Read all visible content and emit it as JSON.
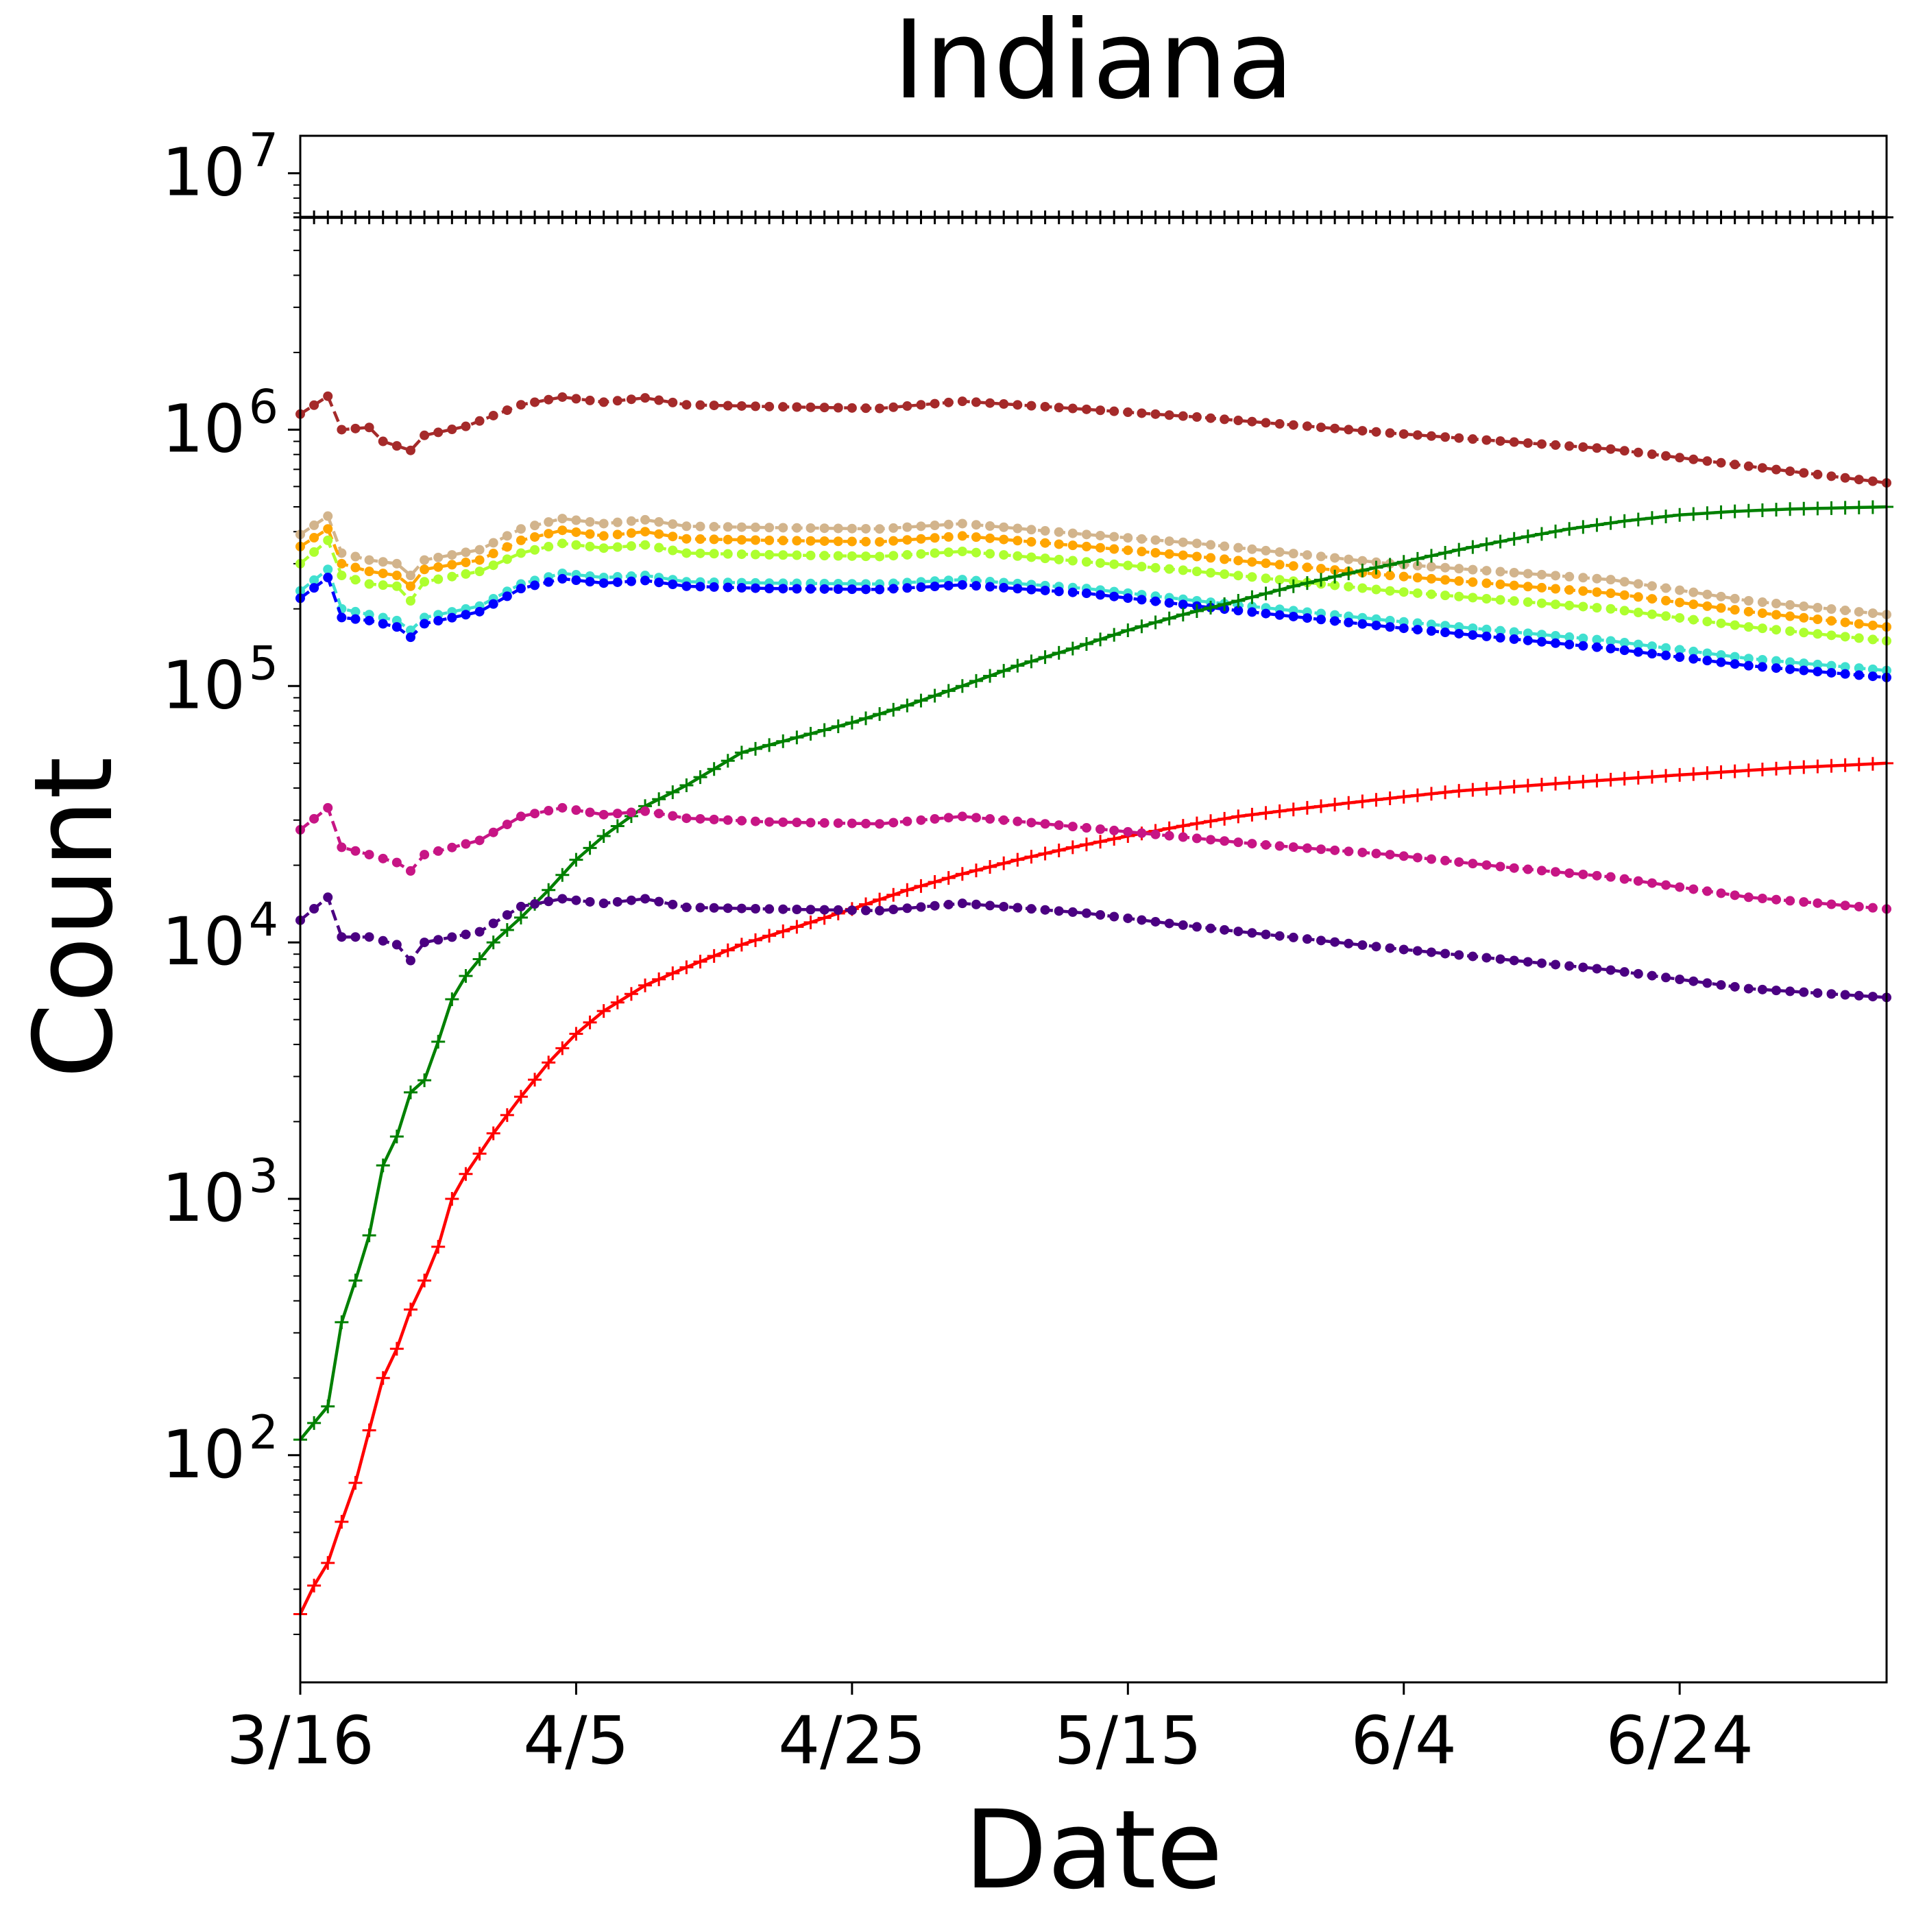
{
  "chart_data": {
    "type": "line",
    "title": "Indiana",
    "xlabel": "Date",
    "ylabel": "Count",
    "x_axis": {
      "start": "3/16",
      "end_day_offset_label_span": "3/16 to 7/9",
      "tick_labels": [
        "3/16",
        "4/5",
        "4/25",
        "5/15",
        "6/4",
        "6/24"
      ],
      "n_days": 116
    },
    "y_axis": {
      "scale": "log",
      "ylim": [
        13,
        14000000
      ],
      "tick_exponents": [
        2,
        3,
        4,
        5,
        6,
        7
      ],
      "tick_base": "10"
    },
    "grid": false,
    "legend": "none",
    "series": [
      {
        "color": "#000000",
        "style": "solid",
        "marker": "plus",
        "keys": [
          [
            0,
            6730000
          ],
          [
            115,
            6730000
          ]
        ]
      },
      {
        "color": "#a52a2a",
        "style": "dashed",
        "marker": "dot",
        "keys": [
          [
            0,
            1150000
          ],
          [
            2,
            1350000
          ],
          [
            3,
            1000000
          ],
          [
            5,
            1020000
          ],
          [
            6,
            900000
          ],
          [
            8,
            830000
          ],
          [
            9,
            950000
          ],
          [
            12,
            1030000
          ],
          [
            16,
            1250000
          ],
          [
            19,
            1340000
          ],
          [
            22,
            1280000
          ],
          [
            25,
            1330000
          ],
          [
            28,
            1250000
          ],
          [
            34,
            1230000
          ],
          [
            42,
            1210000
          ],
          [
            48,
            1290000
          ],
          [
            57,
            1200000
          ],
          [
            65,
            1120000
          ],
          [
            79,
            970000
          ],
          [
            95,
            840000
          ],
          [
            105,
            720000
          ],
          [
            115,
            620000
          ]
        ]
      },
      {
        "color": "#d2b48c",
        "style": "dashed",
        "marker": "dot",
        "keys": [
          [
            0,
            390000
          ],
          [
            2,
            460000
          ],
          [
            3,
            330000
          ],
          [
            5,
            310000
          ],
          [
            7,
            300000
          ],
          [
            8,
            270000
          ],
          [
            9,
            310000
          ],
          [
            13,
            340000
          ],
          [
            16,
            410000
          ],
          [
            19,
            450000
          ],
          [
            22,
            430000
          ],
          [
            25,
            445000
          ],
          [
            28,
            420000
          ],
          [
            34,
            415000
          ],
          [
            42,
            410000
          ],
          [
            48,
            430000
          ],
          [
            57,
            390000
          ],
          [
            65,
            360000
          ],
          [
            79,
            300000
          ],
          [
            95,
            260000
          ],
          [
            105,
            215000
          ],
          [
            115,
            190000
          ]
        ]
      },
      {
        "color": "#ffa500",
        "style": "dashed",
        "marker": "dot",
        "keys": [
          [
            0,
            350000
          ],
          [
            2,
            410000
          ],
          [
            3,
            300000
          ],
          [
            5,
            280000
          ],
          [
            7,
            270000
          ],
          [
            8,
            245000
          ],
          [
            9,
            285000
          ],
          [
            13,
            310000
          ],
          [
            16,
            370000
          ],
          [
            19,
            405000
          ],
          [
            22,
            385000
          ],
          [
            25,
            400000
          ],
          [
            28,
            375000
          ],
          [
            34,
            370000
          ],
          [
            42,
            365000
          ],
          [
            48,
            385000
          ],
          [
            57,
            350000
          ],
          [
            65,
            320000
          ],
          [
            79,
            270000
          ],
          [
            95,
            230000
          ],
          [
            105,
            195000
          ],
          [
            115,
            170000
          ]
        ]
      },
      {
        "color": "#adff2f",
        "style": "dashed",
        "marker": "dot",
        "keys": [
          [
            0,
            300000
          ],
          [
            2,
            370000
          ],
          [
            3,
            270000
          ],
          [
            5,
            250000
          ],
          [
            7,
            245000
          ],
          [
            8,
            215000
          ],
          [
            9,
            255000
          ],
          [
            13,
            280000
          ],
          [
            16,
            330000
          ],
          [
            19,
            360000
          ],
          [
            22,
            345000
          ],
          [
            25,
            355000
          ],
          [
            28,
            330000
          ],
          [
            34,
            325000
          ],
          [
            42,
            320000
          ],
          [
            48,
            335000
          ],
          [
            57,
            305000
          ],
          [
            65,
            280000
          ],
          [
            79,
            235000
          ],
          [
            95,
            200000
          ],
          [
            105,
            170000
          ],
          [
            115,
            150000
          ]
        ]
      },
      {
        "color": "#40e0d0",
        "style": "dashed",
        "marker": "dot",
        "keys": [
          [
            0,
            235000
          ],
          [
            2,
            285000
          ],
          [
            3,
            200000
          ],
          [
            5,
            190000
          ],
          [
            7,
            180000
          ],
          [
            8,
            165000
          ],
          [
            9,
            185000
          ],
          [
            13,
            205000
          ],
          [
            16,
            250000
          ],
          [
            19,
            275000
          ],
          [
            22,
            265000
          ],
          [
            25,
            270000
          ],
          [
            28,
            255000
          ],
          [
            34,
            252000
          ],
          [
            42,
            250000
          ],
          [
            48,
            260000
          ],
          [
            57,
            240000
          ],
          [
            65,
            215000
          ],
          [
            79,
            180000
          ],
          [
            95,
            150000
          ],
          [
            105,
            128000
          ],
          [
            115,
            115000
          ]
        ]
      },
      {
        "color": "#0000ff",
        "style": "dashed",
        "marker": "dot",
        "keys": [
          [
            0,
            220000
          ],
          [
            2,
            265000
          ],
          [
            3,
            185000
          ],
          [
            5,
            180000
          ],
          [
            7,
            170000
          ],
          [
            8,
            155000
          ],
          [
            9,
            175000
          ],
          [
            13,
            195000
          ],
          [
            16,
            240000
          ],
          [
            19,
            262000
          ],
          [
            22,
            252000
          ],
          [
            25,
            258000
          ],
          [
            28,
            245000
          ],
          [
            34,
            240000
          ],
          [
            42,
            238000
          ],
          [
            48,
            248000
          ],
          [
            57,
            230000
          ],
          [
            65,
            205000
          ],
          [
            79,
            170000
          ],
          [
            95,
            140000
          ],
          [
            105,
            120000
          ],
          [
            115,
            108000
          ]
        ]
      },
      {
        "color": "#008000",
        "style": "solid",
        "marker": "plus",
        "keys": [
          [
            0,
            115
          ],
          [
            2,
            155
          ],
          [
            3,
            330
          ],
          [
            4,
            480
          ],
          [
            5,
            720
          ],
          [
            6,
            1350
          ],
          [
            7,
            1750
          ],
          [
            8,
            2600
          ],
          [
            9,
            2900
          ],
          [
            10,
            4100
          ],
          [
            11,
            6000
          ],
          [
            12,
            7400
          ],
          [
            14,
            10000
          ],
          [
            16,
            12500
          ],
          [
            18,
            16000
          ],
          [
            20,
            21000
          ],
          [
            22,
            26000
          ],
          [
            25,
            34000
          ],
          [
            28,
            41000
          ],
          [
            32,
            55000
          ],
          [
            36,
            63000
          ],
          [
            40,
            72000
          ],
          [
            44,
            84000
          ],
          [
            48,
            100000
          ],
          [
            52,
            120000
          ],
          [
            56,
            140000
          ],
          [
            60,
            165000
          ],
          [
            64,
            190000
          ],
          [
            68,
            215000
          ],
          [
            72,
            245000
          ],
          [
            76,
            275000
          ],
          [
            80,
            305000
          ],
          [
            84,
            340000
          ],
          [
            88,
            375000
          ],
          [
            92,
            410000
          ],
          [
            96,
            440000
          ],
          [
            100,
            465000
          ],
          [
            104,
            480000
          ],
          [
            108,
            490000
          ],
          [
            115,
            500000
          ]
        ]
      },
      {
        "color": "#ff0000",
        "style": "solid",
        "marker": "plus",
        "keys": [
          [
            0,
            24
          ],
          [
            1,
            31
          ],
          [
            2,
            38
          ],
          [
            3,
            55
          ],
          [
            4,
            78
          ],
          [
            5,
            125
          ],
          [
            6,
            200
          ],
          [
            7,
            260
          ],
          [
            8,
            370
          ],
          [
            9,
            480
          ],
          [
            10,
            650
          ],
          [
            11,
            1000
          ],
          [
            12,
            1250
          ],
          [
            14,
            1800
          ],
          [
            16,
            2500
          ],
          [
            18,
            3400
          ],
          [
            20,
            4400
          ],
          [
            22,
            5400
          ],
          [
            25,
            6800
          ],
          [
            28,
            8000
          ],
          [
            32,
            9800
          ],
          [
            36,
            11500
          ],
          [
            40,
            13500
          ],
          [
            44,
            16000
          ],
          [
            48,
            18500
          ],
          [
            52,
            21000
          ],
          [
            56,
            23500
          ],
          [
            60,
            26000
          ],
          [
            64,
            28500
          ],
          [
            68,
            31000
          ],
          [
            72,
            33000
          ],
          [
            76,
            35000
          ],
          [
            80,
            37000
          ],
          [
            84,
            39000
          ],
          [
            88,
            40500
          ],
          [
            92,
            42000
          ],
          [
            96,
            43500
          ],
          [
            100,
            45000
          ],
          [
            104,
            46500
          ],
          [
            108,
            48000
          ],
          [
            115,
            50000
          ]
        ]
      },
      {
        "color": "#c71585",
        "style": "dashed",
        "marker": "dot",
        "keys": [
          [
            0,
            27500
          ],
          [
            2,
            33500
          ],
          [
            3,
            23500
          ],
          [
            5,
            22000
          ],
          [
            7,
            20500
          ],
          [
            8,
            19000
          ],
          [
            9,
            22000
          ],
          [
            13,
            25000
          ],
          [
            16,
            31000
          ],
          [
            19,
            33500
          ],
          [
            22,
            31500
          ],
          [
            25,
            32500
          ],
          [
            28,
            30500
          ],
          [
            34,
            29500
          ],
          [
            42,
            29000
          ],
          [
            48,
            31000
          ],
          [
            54,
            29000
          ],
          [
            60,
            27000
          ],
          [
            70,
            24000
          ],
          [
            79,
            22000
          ],
          [
            88,
            19500
          ],
          [
            95,
            18000
          ],
          [
            105,
            15000
          ],
          [
            115,
            13500
          ]
        ]
      },
      {
        "color": "#4b0082",
        "style": "dashed",
        "marker": "dot",
        "keys": [
          [
            0,
            12200
          ],
          [
            2,
            15000
          ],
          [
            3,
            10500
          ],
          [
            5,
            10500
          ],
          [
            7,
            9800
          ],
          [
            8,
            8500
          ],
          [
            9,
            10000
          ],
          [
            13,
            11000
          ],
          [
            16,
            13800
          ],
          [
            19,
            14800
          ],
          [
            22,
            14200
          ],
          [
            25,
            14800
          ],
          [
            28,
            13700
          ],
          [
            34,
            13500
          ],
          [
            42,
            13300
          ],
          [
            48,
            14200
          ],
          [
            57,
            13000
          ],
          [
            65,
            11500
          ],
          [
            79,
            9500
          ],
          [
            95,
            7800
          ],
          [
            105,
            6600
          ],
          [
            115,
            6100
          ]
        ]
      }
    ]
  }
}
